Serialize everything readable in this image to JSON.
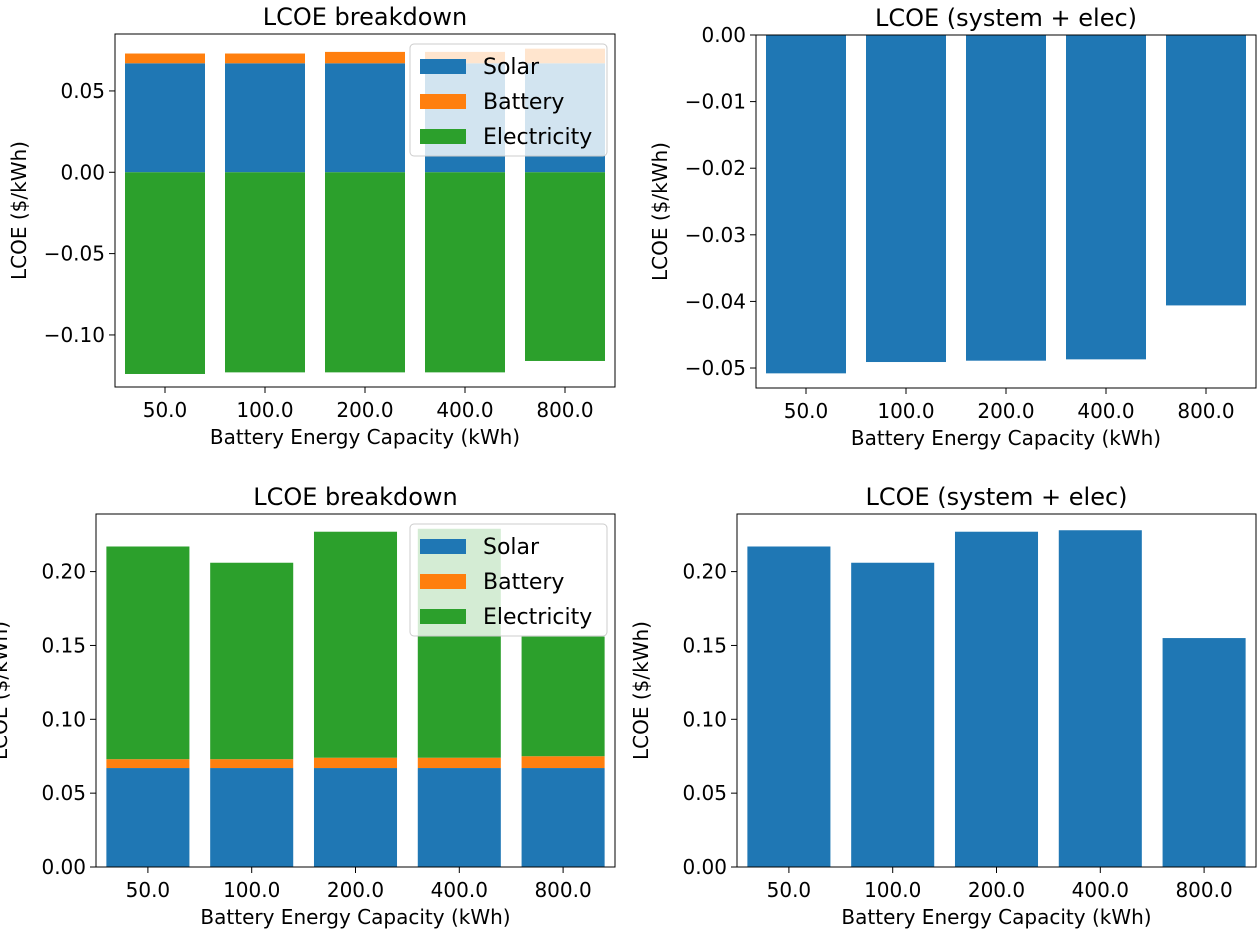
{
  "colors": {
    "solar": "#1f77b4",
    "battery": "#ff7f0e",
    "electricity": "#2ca02c",
    "single": "#1f77b4"
  },
  "chart_data": [
    {
      "type": "bar",
      "stacked": true,
      "title": "LCOE breakdown",
      "xlabel": "Battery Energy Capacity (kWh)",
      "ylabel": "LCOE ($/kWh)",
      "categories": [
        "50.0",
        "100.0",
        "200.0",
        "400.0",
        "800.0"
      ],
      "ylim": [
        -0.132,
        0.085
      ],
      "yticks": [
        -0.1,
        -0.05,
        0.0,
        0.05
      ],
      "ytick_labels": [
        "−0.10",
        "−0.05",
        "0.00",
        "0.05"
      ],
      "legend": "top-right",
      "series": [
        {
          "name": "Solar",
          "color_key": "solar",
          "values": [
            0.067,
            0.067,
            0.067,
            0.067,
            0.067
          ]
        },
        {
          "name": "Battery",
          "color_key": "battery",
          "values": [
            0.006,
            0.006,
            0.007,
            0.007,
            0.009
          ]
        },
        {
          "name": "Electricity",
          "color_key": "electricity",
          "values": [
            -0.124,
            -0.123,
            -0.123,
            -0.123,
            -0.116
          ]
        }
      ]
    },
    {
      "type": "bar",
      "title": "LCOE (system + elec)",
      "xlabel": "Battery Energy Capacity (kWh)",
      "ylabel": "LCOE ($/kWh)",
      "categories": [
        "50.0",
        "100.0",
        "200.0",
        "400.0",
        "800.0"
      ],
      "ylim": [
        -0.053,
        0.0
      ],
      "yticks": [
        -0.05,
        -0.04,
        -0.03,
        -0.02,
        -0.01,
        0.0
      ],
      "ytick_labels": [
        "−0.05",
        "−0.04",
        "−0.03",
        "−0.02",
        "−0.01",
        "0.00"
      ],
      "series": [
        {
          "name": "LCOE",
          "color_key": "single",
          "values": [
            -0.0508,
            -0.0491,
            -0.0489,
            -0.0487,
            -0.0406
          ]
        }
      ]
    },
    {
      "type": "bar",
      "stacked": true,
      "title": "LCOE breakdown",
      "xlabel": "Battery Energy Capacity (kWh)",
      "ylabel": "LCOE ($/kWh)",
      "categories": [
        "50.0",
        "100.0",
        "200.0",
        "400.0",
        "800.0"
      ],
      "ylim": [
        0.0,
        0.239
      ],
      "yticks": [
        0.0,
        0.05,
        0.1,
        0.15,
        0.2
      ],
      "ytick_labels": [
        "0.00",
        "0.05",
        "0.10",
        "0.15",
        "0.20"
      ],
      "legend": "top-right",
      "series": [
        {
          "name": "Solar",
          "color_key": "solar",
          "values": [
            0.067,
            0.067,
            0.067,
            0.067,
            0.067
          ]
        },
        {
          "name": "Battery",
          "color_key": "battery",
          "values": [
            0.006,
            0.006,
            0.007,
            0.007,
            0.008
          ]
        },
        {
          "name": "Electricity",
          "color_key": "electricity",
          "values": [
            0.144,
            0.133,
            0.153,
            0.155,
            0.081
          ]
        }
      ]
    },
    {
      "type": "bar",
      "title": "LCOE (system + elec)",
      "xlabel": "Battery Energy Capacity (kWh)",
      "ylabel": "LCOE ($/kWh)",
      "categories": [
        "50.0",
        "100.0",
        "200.0",
        "400.0",
        "800.0"
      ],
      "ylim": [
        0.0,
        0.239
      ],
      "yticks": [
        0.0,
        0.05,
        0.1,
        0.15,
        0.2
      ],
      "ytick_labels": [
        "0.00",
        "0.05",
        "0.10",
        "0.15",
        "0.20"
      ],
      "series": [
        {
          "name": "LCOE",
          "color_key": "single",
          "values": [
            0.217,
            0.206,
            0.227,
            0.228,
            0.155
          ]
        }
      ]
    }
  ]
}
